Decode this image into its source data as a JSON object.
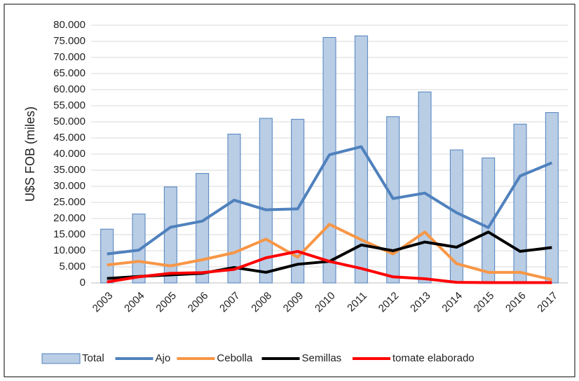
{
  "chart_data": {
    "type": "bar",
    "y_label": "U$S FOB (miles)",
    "categories": [
      "2003",
      "2004",
      "2005",
      "2006",
      "2007",
      "2008",
      "2009",
      "2010",
      "2011",
      "2012",
      "2013",
      "2014",
      "2015",
      "2016",
      "2017"
    ],
    "series": [
      {
        "name": "Total",
        "type": "bar",
        "color": "#b9cde5",
        "values": [
          16700,
          21400,
          29800,
          34000,
          46200,
          51100,
          50800,
          76200,
          76700,
          51600,
          59300,
          41300,
          38800,
          49300,
          52900
        ]
      },
      {
        "name": "Ajo",
        "type": "line",
        "color": "#4f81bd",
        "values": [
          9000,
          10200,
          17300,
          19200,
          25700,
          22700,
          23000,
          39800,
          42300,
          26200,
          27900,
          21800,
          17200,
          33200,
          37300
        ]
      },
      {
        "name": "Cebolla",
        "type": "line",
        "color": "#f79646",
        "values": [
          5600,
          6700,
          5300,
          7200,
          9400,
          13600,
          8000,
          18200,
          13400,
          9000,
          15800,
          6000,
          3300,
          3300,
          1000
        ]
      },
      {
        "name": "Semillas",
        "type": "line",
        "color": "#000000",
        "values": [
          1400,
          2000,
          2500,
          3000,
          4800,
          3300,
          5800,
          6700,
          11800,
          10000,
          12700,
          11100,
          15800,
          9800,
          11000
        ]
      },
      {
        "name": "tomate elaborado",
        "type": "line",
        "color": "#ff0000",
        "values": [
          300,
          1900,
          3000,
          3200,
          4200,
          7800,
          9800,
          6700,
          4500,
          1900,
          1300,
          200,
          100,
          100,
          100
        ]
      }
    ],
    "ylim": [
      0,
      80000
    ],
    "yticks": [
      0,
      {
        "value": 5000,
        "label": "5.000"
      },
      {
        "value": 10000,
        "label": "10.000"
      },
      {
        "value": 15000,
        "label": "15.000"
      },
      {
        "value": 20000,
        "label": "20.000"
      },
      {
        "value": 25000,
        "label": "25.000"
      },
      {
        "value": 30000,
        "label": "30.000"
      },
      {
        "value": 35000,
        "label": "35.000"
      },
      {
        "value": 40000,
        "label": "40.000"
      },
      {
        "value": 45000,
        "label": "45.000"
      },
      {
        "value": 50000,
        "label": "50.000"
      },
      {
        "value": 55000,
        "label": "55.000"
      },
      {
        "value": 60000,
        "label": "60.000"
      },
      {
        "value": 65000,
        "label": "65.000"
      },
      {
        "value": 70000,
        "label": "70.000"
      },
      {
        "value": 75000,
        "label": "75.000"
      },
      {
        "value": 80000,
        "label": "80.000"
      }
    ],
    "grid": true
  }
}
